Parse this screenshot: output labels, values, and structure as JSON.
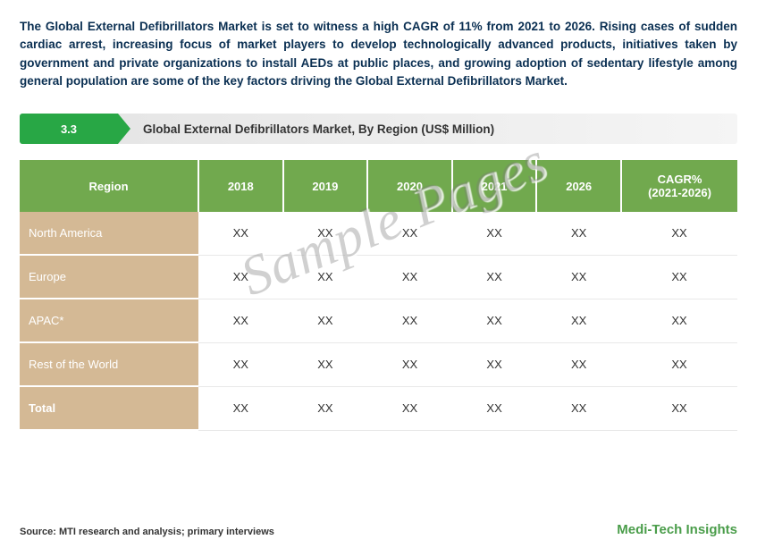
{
  "description": "The Global External Defibrillators Market is set to witness a high CAGR of 11% from 2021 to 2026. Rising cases of sudden cardiac arrest, increasing focus of market players to develop technologically advanced products, initiatives taken by government and private organizations to install AEDs at public places, and growing adoption of sedentary lifestyle among general population are some of the key factors driving the Global External Defibrillators Market.",
  "section": {
    "number": "3.3",
    "title": "Global External Defibrillators Market, By Region (US$ Million)"
  },
  "table": {
    "type": "table",
    "header_bg": "#71a94e",
    "header_color": "#ffffff",
    "rowheader_bg": "#d4b995",
    "rowheader_color": "#ffffff",
    "columns": [
      "Region",
      "2018",
      "2019",
      "2020",
      "2021",
      "2026",
      "CAGR% (2021-2026)"
    ],
    "rows": [
      {
        "label": "North America",
        "vals": [
          "XX",
          "XX",
          "XX",
          "XX",
          "XX",
          "XX"
        ],
        "total": false
      },
      {
        "label": "Europe",
        "vals": [
          "XX",
          "XX",
          "XX",
          "XX",
          "XX",
          "XX"
        ],
        "total": false
      },
      {
        "label": "APAC*",
        "vals": [
          "XX",
          "XX",
          "XX",
          "XX",
          "XX",
          "XX"
        ],
        "total": false
      },
      {
        "label": "Rest of the World",
        "vals": [
          "XX",
          "XX",
          "XX",
          "XX",
          "XX",
          "XX"
        ],
        "total": false
      },
      {
        "label": "Total",
        "vals": [
          "XX",
          "XX",
          "XX",
          "XX",
          "XX",
          "XX"
        ],
        "total": true
      }
    ]
  },
  "watermark": "Sample Pages",
  "footer": {
    "source": "Source: MTI research and analysis; primary interviews",
    "brand": "Medi-Tech Insights"
  },
  "colors": {
    "accent_green": "#28a745",
    "table_header": "#71a94e",
    "row_header": "#d4b995",
    "text_dark": "#0a2f52",
    "brand_green": "#4a9d4a"
  }
}
